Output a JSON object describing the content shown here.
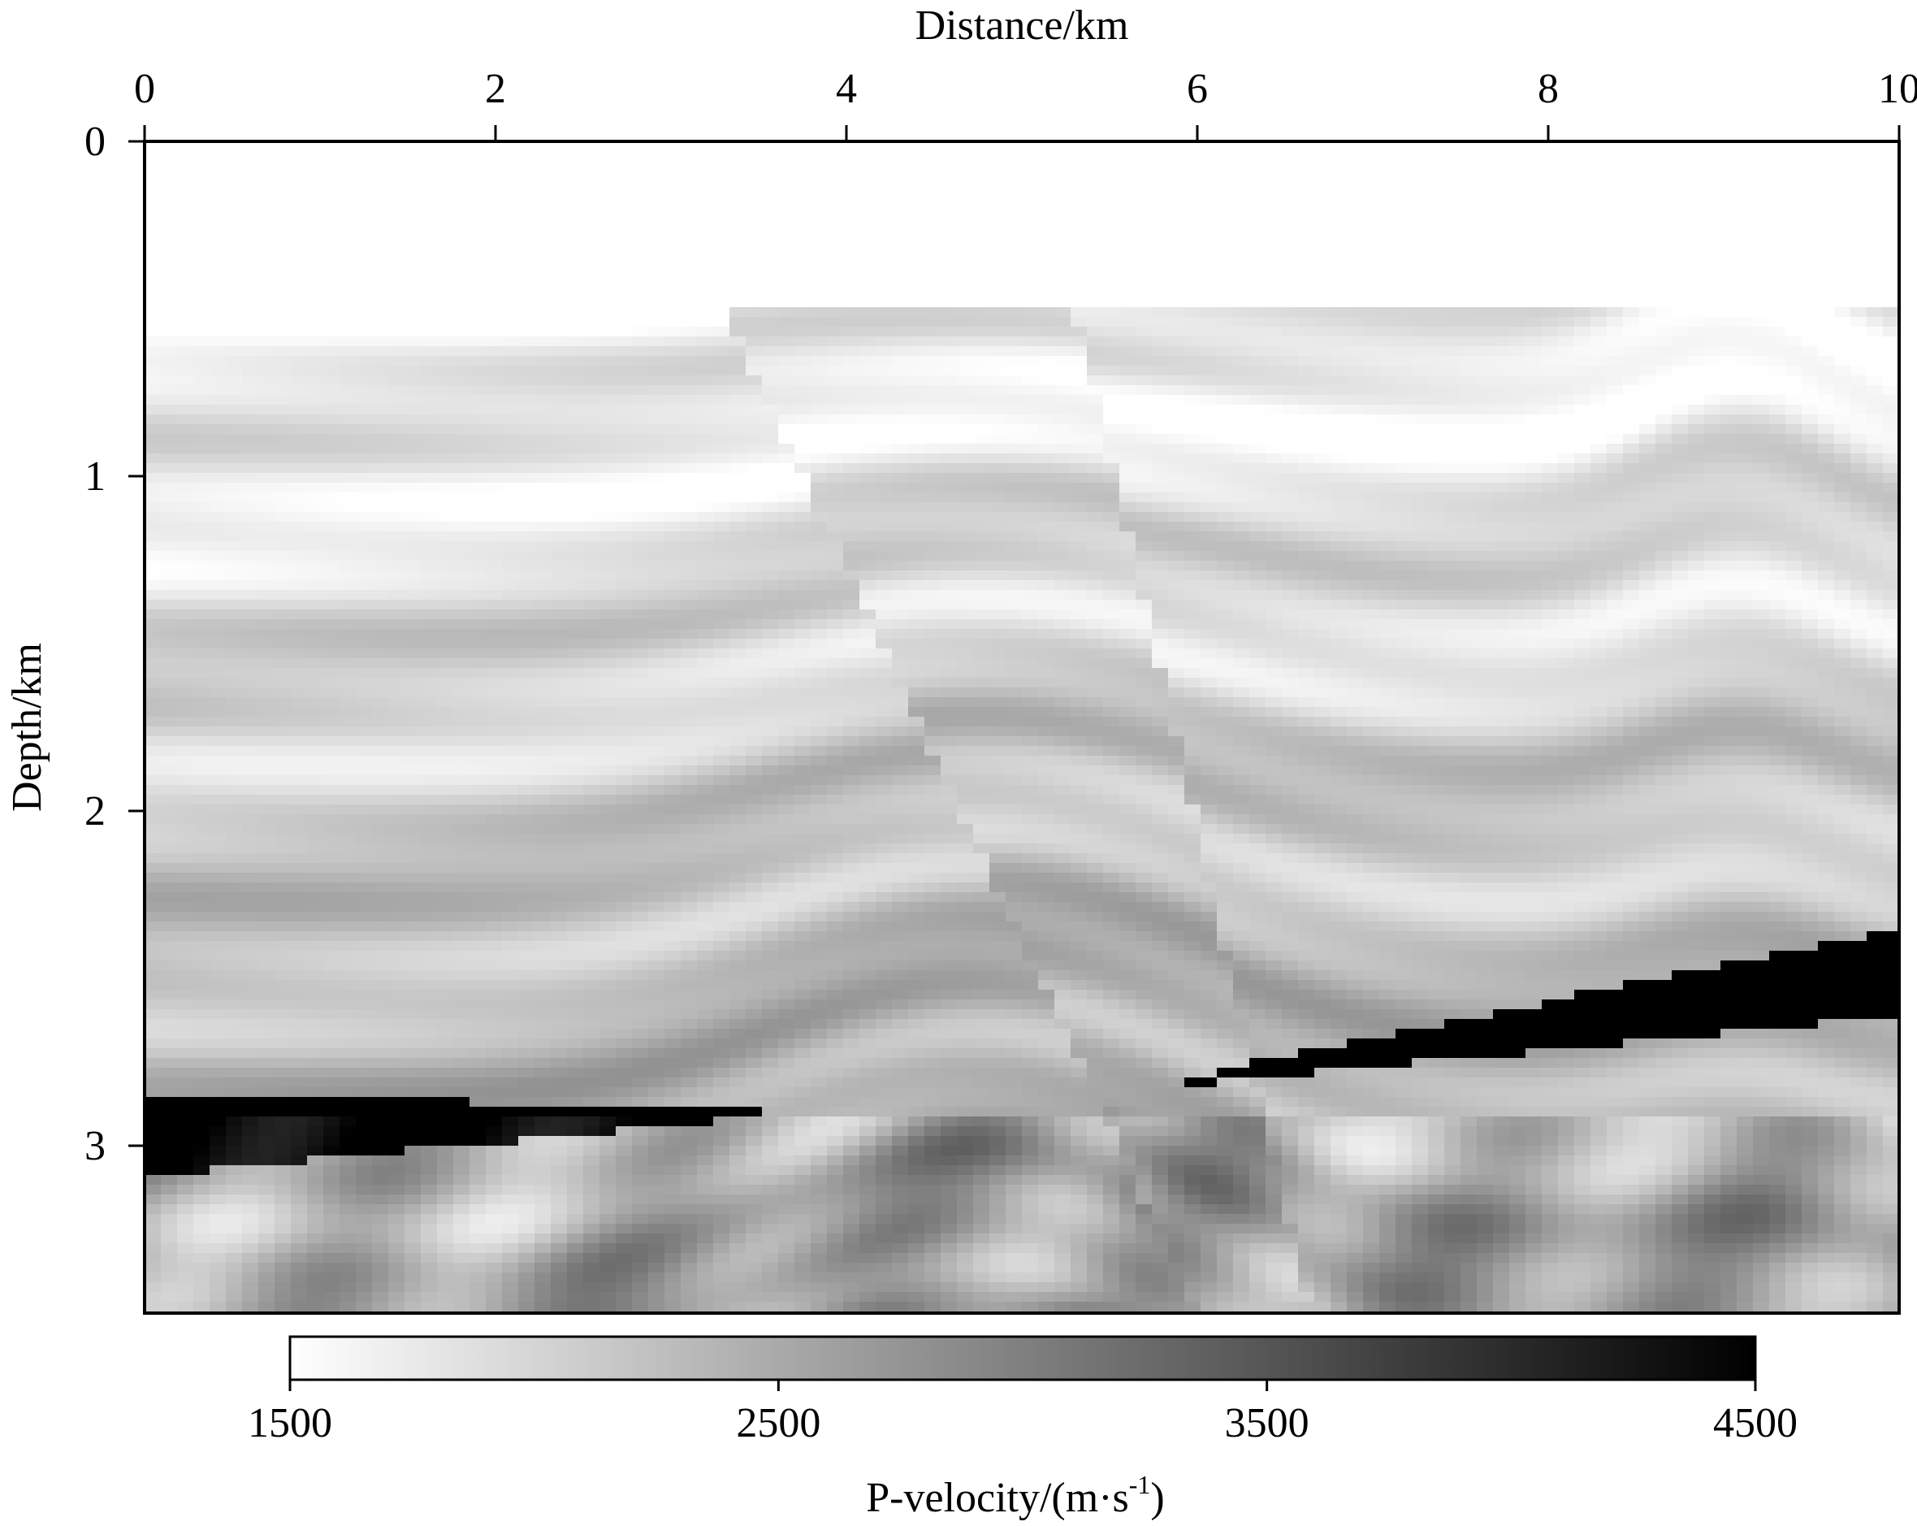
{
  "chart_data": {
    "type": "heatmap",
    "title": "",
    "xlabel": "Distance/km",
    "ylabel": "Depth/km",
    "xlim": [
      0,
      10
    ],
    "ylim": [
      0,
      3.5
    ],
    "x_ticks": [
      "0",
      "2",
      "4",
      "6",
      "8",
      "10"
    ],
    "y_ticks": [
      "0",
      "1",
      "2",
      "3"
    ],
    "x_axis_position": "top",
    "y_axis_inverted": true,
    "grid": false,
    "colorbar": {
      "label_main": "P-velocity/(m·s",
      "label_sup": "-1",
      "label_close": ")",
      "min": 1500,
      "max": 4500,
      "ticks": [
        "1500",
        "2500",
        "3500",
        "4500"
      ],
      "colormap": "white-to-black (gray)",
      "color_low": "#ffffff",
      "color_high": "#000000",
      "placement": "bottom"
    },
    "model": {
      "water_velocity": 1500,
      "water_bottom_depth": 0.5,
      "description_values": "layered sediments 1700–3200 m/s, faulted anticline near 4–6 km, high-velocity wedges ~4500 m/s near 3 km depth"
    }
  }
}
